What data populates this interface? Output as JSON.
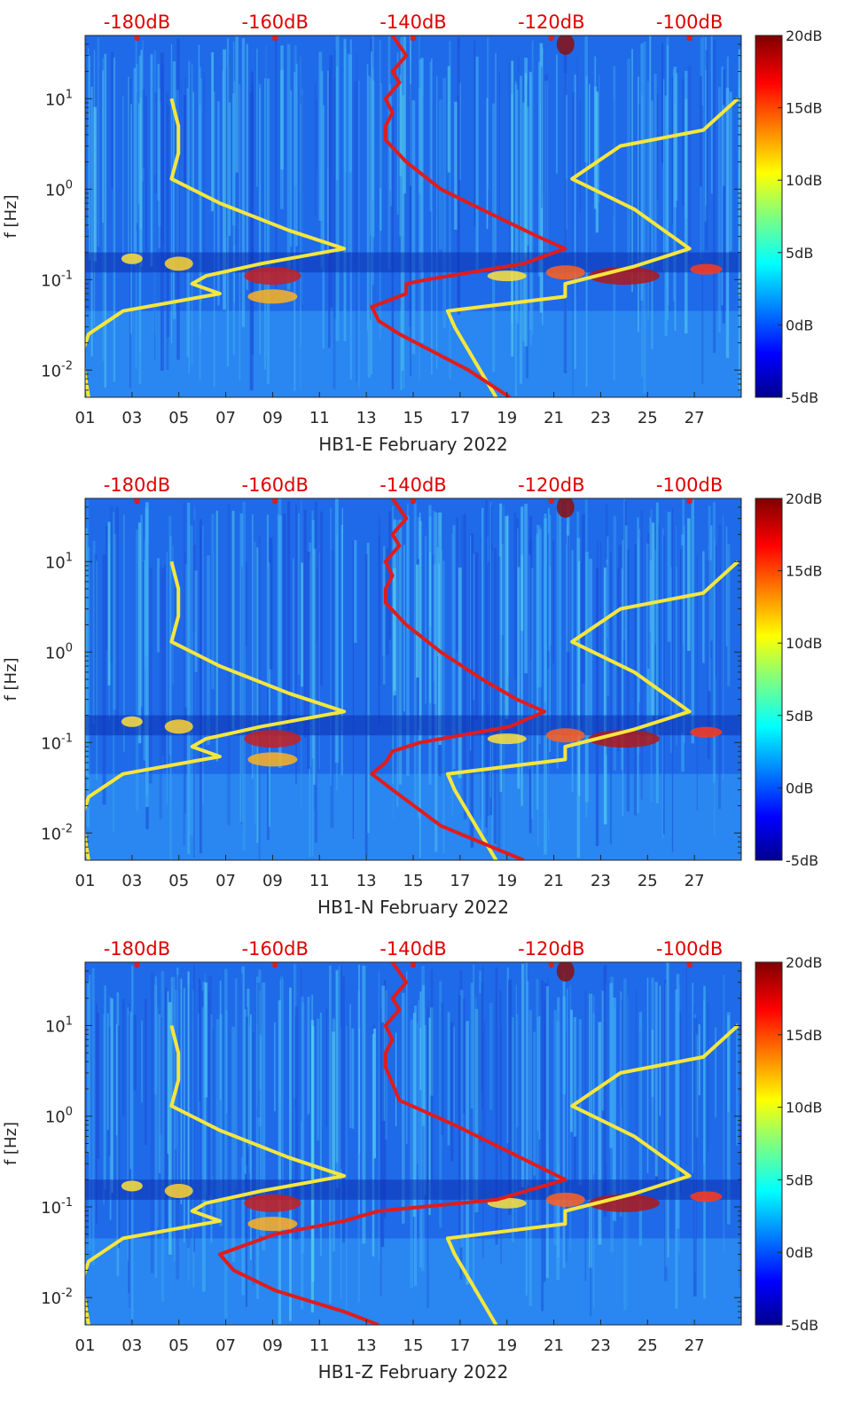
{
  "chart_data": [
    {
      "type": "heatmap",
      "xlabel": "HB1-E February 2022",
      "ylabel": "f [Hz]",
      "x_ticks": [
        "01",
        "03",
        "05",
        "07",
        "09",
        "11",
        "13",
        "15",
        "17",
        "19",
        "21",
        "23",
        "25",
        "27"
      ],
      "x_range_days": [
        1,
        29
      ],
      "y_scale": "log",
      "ylim_hz": [
        0.005,
        50
      ],
      "y_ticks": [
        {
          "base": "10",
          "exp": "1",
          "value": 10
        },
        {
          "base": "10",
          "exp": "0",
          "value": 1
        },
        {
          "base": "10",
          "exp": "-1",
          "value": 0.1
        },
        {
          "base": "10",
          "exp": "-2",
          "value": 0.01
        }
      ],
      "top_axis": {
        "ticks": [
          "-180dB",
          "-160dB",
          "-140dB",
          "-120dB",
          "-100dB"
        ],
        "range_db": [
          -187.5,
          -92.5
        ]
      },
      "colorbar": {
        "ticks": [
          "20dB",
          "15dB",
          "10dB",
          "5dB",
          "0dB",
          "-5dB"
        ],
        "range_db": [
          -5,
          20
        ],
        "colormap": "jet"
      },
      "series": [
        {
          "color": "#f5e63d",
          "points_db_hz": [
            [
              -175,
              10
            ],
            [
              -174,
              5
            ],
            [
              -174,
              2.5
            ],
            [
              -175,
              1.3
            ],
            [
              -168,
              0.7
            ],
            [
              -158,
              0.35
            ],
            [
              -150,
              0.22
            ],
            [
              -162,
              0.15
            ],
            [
              -170,
              0.11
            ],
            [
              -172,
              0.09
            ],
            [
              -168,
              0.07
            ],
            [
              -182,
              0.045
            ],
            [
              -187,
              0.025
            ],
            [
              -188,
              0.015
            ],
            [
              -187,
              0.005
            ]
          ]
        },
        {
          "color": "#f5e63d",
          "points_db_hz": [
            [
              -93,
              10
            ],
            [
              -98,
              4.5
            ],
            [
              -110,
              3
            ],
            [
              -117,
              1.3
            ],
            [
              -108,
              0.6
            ],
            [
              -100,
              0.22
            ],
            [
              -108,
              0.14
            ],
            [
              -118,
              0.09
            ],
            [
              -118,
              0.065
            ],
            [
              -135,
              0.045
            ],
            [
              -134,
              0.03
            ],
            [
              -128,
              0.005
            ]
          ]
        },
        {
          "color": "#e01c1c",
          "points_db_hz": [
            [
              -143,
              50
            ],
            [
              -141,
              30
            ],
            [
              -143,
              20
            ],
            [
              -142,
              15
            ],
            [
              -144,
              10
            ],
            [
              -143,
              7
            ],
            [
              -144,
              5
            ],
            [
              -144,
              3.5
            ],
            [
              -141,
              2
            ],
            [
              -136,
              1
            ],
            [
              -128,
              0.5
            ],
            [
              -122,
              0.3
            ],
            [
              -118,
              0.22
            ],
            [
              -124,
              0.15
            ],
            [
              -138,
              0.1
            ],
            [
              -141,
              0.09
            ],
            [
              -141,
              0.07
            ],
            [
              -146,
              0.05
            ],
            [
              -145,
              0.035
            ],
            [
              -142,
              0.025
            ],
            [
              -132,
              0.01
            ],
            [
              -126,
              0.005
            ]
          ]
        }
      ]
    },
    {
      "type": "heatmap",
      "xlabel": "HB1-N February 2022",
      "ylabel": "f [Hz]",
      "x_ticks": [
        "01",
        "03",
        "05",
        "07",
        "09",
        "11",
        "13",
        "15",
        "17",
        "19",
        "21",
        "23",
        "25",
        "27"
      ],
      "x_range_days": [
        1,
        29
      ],
      "y_scale": "log",
      "ylim_hz": [
        0.005,
        50
      ],
      "y_ticks": [
        {
          "base": "10",
          "exp": "1",
          "value": 10
        },
        {
          "base": "10",
          "exp": "0",
          "value": 1
        },
        {
          "base": "10",
          "exp": "-1",
          "value": 0.1
        },
        {
          "base": "10",
          "exp": "-2",
          "value": 0.01
        }
      ],
      "top_axis": {
        "ticks": [
          "-180dB",
          "-160dB",
          "-140dB",
          "-120dB",
          "-100dB"
        ],
        "range_db": [
          -187.5,
          -92.5
        ]
      },
      "colorbar": {
        "ticks": [
          "20dB",
          "15dB",
          "10dB",
          "5dB",
          "0dB",
          "-5dB"
        ],
        "range_db": [
          -5,
          20
        ],
        "colormap": "jet"
      },
      "series": [
        {
          "color": "#f5e63d",
          "points_db_hz": [
            [
              -175,
              10
            ],
            [
              -174,
              5
            ],
            [
              -174,
              2.5
            ],
            [
              -175,
              1.3
            ],
            [
              -168,
              0.7
            ],
            [
              -158,
              0.35
            ],
            [
              -150,
              0.22
            ],
            [
              -162,
              0.15
            ],
            [
              -170,
              0.11
            ],
            [
              -172,
              0.09
            ],
            [
              -168,
              0.07
            ],
            [
              -182,
              0.045
            ],
            [
              -187,
              0.025
            ],
            [
              -188,
              0.015
            ],
            [
              -187,
              0.005
            ]
          ]
        },
        {
          "color": "#f5e63d",
          "points_db_hz": [
            [
              -93,
              10
            ],
            [
              -98,
              4.5
            ],
            [
              -110,
              3
            ],
            [
              -117,
              1.3
            ],
            [
              -108,
              0.6
            ],
            [
              -100,
              0.22
            ],
            [
              -108,
              0.14
            ],
            [
              -118,
              0.09
            ],
            [
              -118,
              0.065
            ],
            [
              -135,
              0.045
            ],
            [
              -134,
              0.03
            ],
            [
              -128,
              0.005
            ]
          ]
        },
        {
          "color": "#e01c1c",
          "points_db_hz": [
            [
              -143,
              50
            ],
            [
              -141,
              30
            ],
            [
              -143,
              20
            ],
            [
              -142,
              15
            ],
            [
              -144,
              10
            ],
            [
              -143,
              7
            ],
            [
              -144,
              5
            ],
            [
              -144,
              3.5
            ],
            [
              -141,
              2
            ],
            [
              -136,
              1
            ],
            [
              -130,
              0.5
            ],
            [
              -125,
              0.3
            ],
            [
              -121,
              0.22
            ],
            [
              -126,
              0.15
            ],
            [
              -139,
              0.1
            ],
            [
              -143,
              0.08
            ],
            [
              -144,
              0.06
            ],
            [
              -146,
              0.045
            ],
            [
              -143,
              0.03
            ],
            [
              -136,
              0.012
            ],
            [
              -124,
              0.005
            ]
          ]
        }
      ]
    },
    {
      "type": "heatmap",
      "xlabel": "HB1-Z February 2022",
      "ylabel": "f [Hz]",
      "x_ticks": [
        "01",
        "03",
        "05",
        "07",
        "09",
        "11",
        "13",
        "15",
        "17",
        "19",
        "21",
        "23",
        "25",
        "27"
      ],
      "x_range_days": [
        1,
        29
      ],
      "y_scale": "log",
      "ylim_hz": [
        0.005,
        50
      ],
      "y_ticks": [
        {
          "base": "10",
          "exp": "1",
          "value": 10
        },
        {
          "base": "10",
          "exp": "0",
          "value": 1
        },
        {
          "base": "10",
          "exp": "-1",
          "value": 0.1
        },
        {
          "base": "10",
          "exp": "-2",
          "value": 0.01
        }
      ],
      "top_axis": {
        "ticks": [
          "-180dB",
          "-160dB",
          "-140dB",
          "-120dB",
          "-100dB"
        ],
        "range_db": [
          -187.5,
          -92.5
        ]
      },
      "colorbar": {
        "ticks": [
          "20dB",
          "15dB",
          "10dB",
          "5dB",
          "0dB",
          "-5dB"
        ],
        "range_db": [
          -5,
          20
        ],
        "colormap": "jet"
      },
      "series": [
        {
          "color": "#f5e63d",
          "points_db_hz": [
            [
              -175,
              10
            ],
            [
              -174,
              5
            ],
            [
              -174,
              2.5
            ],
            [
              -175,
              1.3
            ],
            [
              -168,
              0.7
            ],
            [
              -158,
              0.35
            ],
            [
              -150,
              0.22
            ],
            [
              -162,
              0.15
            ],
            [
              -170,
              0.11
            ],
            [
              -172,
              0.09
            ],
            [
              -168,
              0.07
            ],
            [
              -182,
              0.045
            ],
            [
              -187,
              0.025
            ],
            [
              -188,
              0.015
            ],
            [
              -187,
              0.005
            ]
          ]
        },
        {
          "color": "#f5e63d",
          "points_db_hz": [
            [
              -93,
              10
            ],
            [
              -98,
              4.5
            ],
            [
              -110,
              3
            ],
            [
              -117,
              1.3
            ],
            [
              -108,
              0.6
            ],
            [
              -100,
              0.22
            ],
            [
              -108,
              0.14
            ],
            [
              -118,
              0.09
            ],
            [
              -118,
              0.065
            ],
            [
              -135,
              0.045
            ],
            [
              -134,
              0.03
            ],
            [
              -128,
              0.005
            ]
          ]
        },
        {
          "color": "#e01c1c",
          "points_db_hz": [
            [
              -143,
              50
            ],
            [
              -141,
              30
            ],
            [
              -143,
              20
            ],
            [
              -142,
              15
            ],
            [
              -144,
              10
            ],
            [
              -143,
              7
            ],
            [
              -144,
              5
            ],
            [
              -144,
              3.5
            ],
            [
              -142,
              1.5
            ],
            [
              -134,
              0.8
            ],
            [
              -126,
              0.4
            ],
            [
              -118,
              0.2
            ],
            [
              -128,
              0.12
            ],
            [
              -145,
              0.09
            ],
            [
              -150,
              0.07
            ],
            [
              -160,
              0.05
            ],
            [
              -168,
              0.03
            ],
            [
              -166,
              0.02
            ],
            [
              -160,
              0.012
            ],
            [
              -150,
              0.007
            ],
            [
              -145,
              0.005
            ]
          ]
        }
      ]
    }
  ]
}
